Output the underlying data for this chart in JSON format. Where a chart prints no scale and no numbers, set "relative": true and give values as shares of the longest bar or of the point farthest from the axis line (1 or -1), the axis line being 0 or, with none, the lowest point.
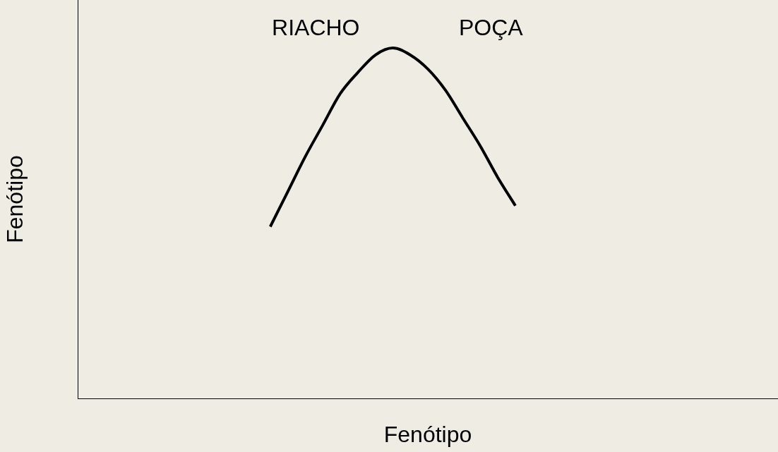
{
  "chart_data": {
    "type": "line",
    "relative": true,
    "xlabel": "Fenótipo",
    "ylabel": "Fenótipo",
    "categories": [
      null,
      null,
      null,
      null,
      null,
      null,
      null,
      null,
      null,
      null,
      null,
      null,
      null,
      null,
      null,
      null,
      null,
      null,
      null,
      null,
      null,
      null,
      null,
      null,
      null,
      null,
      null,
      null,
      null,
      null,
      null,
      null,
      null,
      null,
      null,
      null,
      null,
      null,
      null,
      null,
      null
    ],
    "series": [
      {
        "color": "#000000",
        "values": [
          null,
          null,
          null,
          null,
          null,
          null,
          null,
          null,
          null,
          null,
          null,
          0.49,
          0.59,
          0.69,
          0.78,
          0.87,
          0.93,
          0.98,
          1,
          0.98,
          0.94,
          0.88,
          0.8,
          0.72,
          0.63,
          0.55,
          null,
          null,
          null,
          null,
          null,
          null,
          null,
          null,
          null,
          null,
          null,
          null,
          null,
          null,
          null
        ]
      }
    ],
    "annotations": [
      "RIACHO",
      "POÇA"
    ],
    "grid": false,
    "legend": false,
    "tick_labels": false,
    "marker": "none",
    "line_style": "solid"
  }
}
